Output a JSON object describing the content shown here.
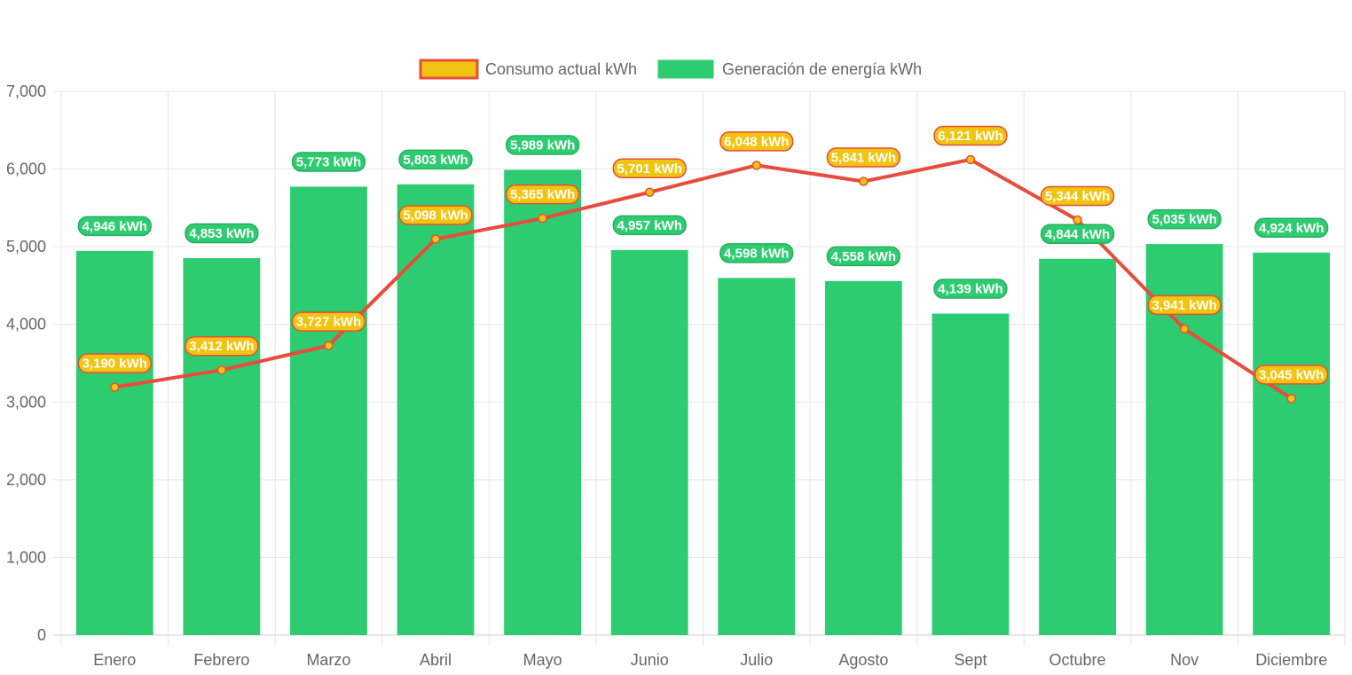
{
  "chart_data": {
    "type": "bar",
    "title": "",
    "xlabel": "",
    "ylabel": "",
    "ylim": [
      0,
      7000
    ],
    "yticks": [
      0,
      1000,
      2000,
      3000,
      4000,
      5000,
      6000,
      7000
    ],
    "ytick_labels": [
      "0",
      "1,000",
      "2,000",
      "3,000",
      "4,000",
      "5,000",
      "6,000",
      "7,000"
    ],
    "grid": true,
    "legend_position": "top-center",
    "categories": [
      "Enero",
      "Febrero",
      "Marzo",
      "Abril",
      "Mayo",
      "Junio",
      "Julio",
      "Agosto",
      "Sept",
      "Octubre",
      "Nov",
      "Diciembre"
    ],
    "series": [
      {
        "name": "Consumo actual kWh",
        "type": "line",
        "color": "#e74c3c",
        "point_color": "#f1c40f",
        "values": [
          3190,
          3412,
          3727,
          5098,
          5365,
          5701,
          6048,
          5841,
          6121,
          5344,
          3941,
          3045
        ],
        "labels": [
          "3,190 kWh",
          "3,412 kWh",
          "3,727 kWh",
          "5,098 kWh",
          "5,365 kWh",
          "5,701 kWh",
          "6,048 kWh",
          "5,841 kWh",
          "6,121 kWh",
          "5,344 kWh",
          "3,941 kWh",
          "3,045 kWh"
        ]
      },
      {
        "name": "Generación de energía kWh",
        "type": "bar",
        "color": "#2ecc71",
        "values": [
          4946,
          4853,
          5773,
          5803,
          5989,
          4957,
          4598,
          4558,
          4139,
          4844,
          5035,
          4924
        ],
        "labels": [
          "4,946 kWh",
          "4,853 kWh",
          "5,773 kWh",
          "5,803 kWh",
          "5,989 kWh",
          "4,957 kWh",
          "4,598 kWh",
          "4,558 kWh",
          "4,139 kWh",
          "4,844 kWh",
          "5,035 kWh",
          "4,924 kWh"
        ]
      }
    ]
  },
  "legend": {
    "items": [
      {
        "label": "Consumo actual kWh",
        "fill": "#f1c40f",
        "border": "#e74c3c"
      },
      {
        "label": "Generación de energía kWh",
        "fill": "#2ecc71",
        "border": "#2ecc71"
      }
    ]
  }
}
